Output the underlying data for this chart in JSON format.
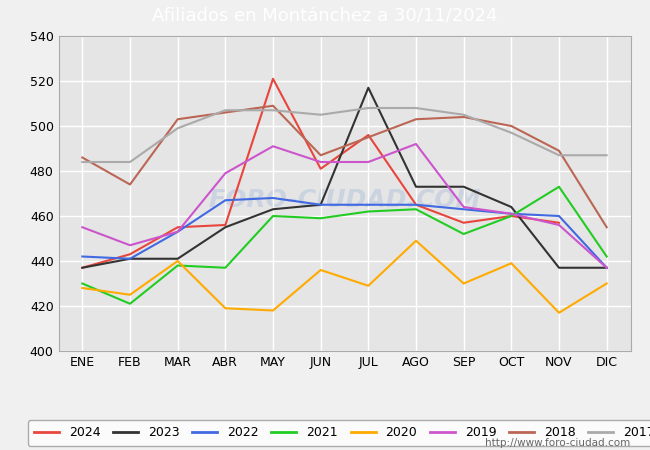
{
  "title": "Afiliados en Montánchez a 30/11/2024",
  "months": [
    "ENE",
    "FEB",
    "MAR",
    "ABR",
    "MAY",
    "JUN",
    "JUL",
    "AGO",
    "SEP",
    "OCT",
    "NOV",
    "DIC"
  ],
  "series": {
    "2024": [
      437,
      443,
      455,
      456,
      521,
      481,
      496,
      465,
      457,
      460,
      457,
      null
    ],
    "2023": [
      437,
      441,
      441,
      455,
      463,
      465,
      517,
      473,
      473,
      464,
      437,
      437
    ],
    "2022": [
      442,
      441,
      453,
      467,
      468,
      465,
      465,
      465,
      463,
      461,
      460,
      437
    ],
    "2021": [
      430,
      421,
      438,
      437,
      460,
      459,
      462,
      463,
      452,
      460,
      473,
      442
    ],
    "2020": [
      428,
      425,
      440,
      419,
      418,
      436,
      429,
      449,
      430,
      439,
      417,
      430
    ],
    "2019": [
      455,
      447,
      453,
      479,
      491,
      484,
      484,
      492,
      464,
      461,
      456,
      437
    ],
    "2018": [
      486,
      474,
      503,
      506,
      509,
      487,
      495,
      503,
      504,
      500,
      489,
      455
    ],
    "2017": [
      484,
      484,
      499,
      507,
      507,
      505,
      508,
      508,
      505,
      497,
      487,
      487
    ]
  },
  "colors": {
    "2024": "#e8463c",
    "2023": "#333333",
    "2022": "#4169e1",
    "2021": "#22cc22",
    "2020": "#ffaa00",
    "2019": "#cc55cc",
    "2018": "#bb6655",
    "2017": "#aaaaaa"
  },
  "ylim": [
    400,
    540
  ],
  "yticks": [
    400,
    420,
    440,
    460,
    480,
    500,
    520,
    540
  ],
  "watermark": "FORO-CIUDAD.COM",
  "url": "http://www.foro-ciudad.com",
  "background_color": "#f0f0f0",
  "plot_background": "#e5e5e5",
  "title_bg_color": "#5b9bd5",
  "title_text_color": "white",
  "grid_color": "white",
  "legend_years": [
    "2024",
    "2023",
    "2022",
    "2021",
    "2020",
    "2019",
    "2018",
    "2017"
  ]
}
